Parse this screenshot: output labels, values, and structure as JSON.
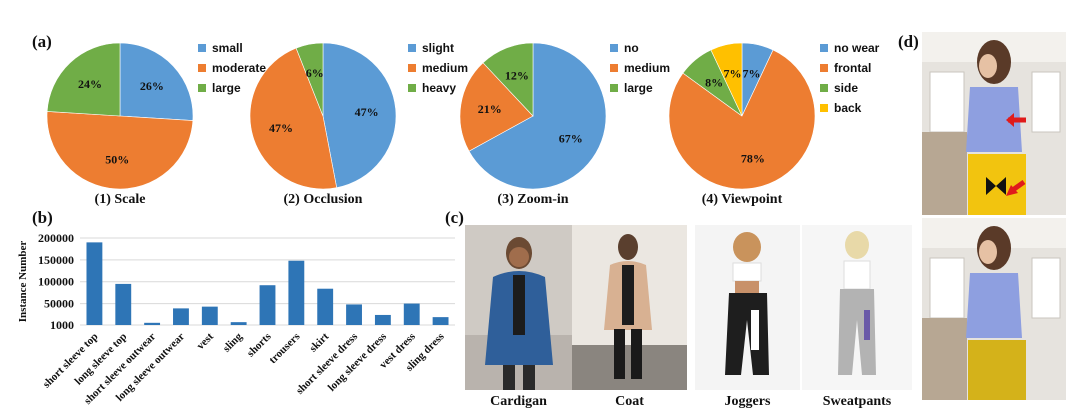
{
  "panels": {
    "a": "(a)",
    "b": "(b)",
    "c": "(c)",
    "d": "(d)"
  },
  "colors": {
    "blue": "#5B9BD5",
    "orange": "#ED7D31",
    "green": "#70AD47",
    "yellow": "#FFC000",
    "bar": "#2E75B6"
  },
  "chart_data": [
    {
      "type": "pie",
      "title": "(1) Scale",
      "slices": [
        {
          "label": "small",
          "value": 26,
          "text": "26%",
          "color": "#5B9BD5"
        },
        {
          "label": "moderate",
          "value": 50,
          "text": "50%",
          "color": "#ED7D31"
        },
        {
          "label": "large",
          "value": 24,
          "text": "24%",
          "color": "#70AD47"
        }
      ],
      "legend_placement": "right"
    },
    {
      "type": "pie",
      "title": "(2) Occlusion",
      "slices": [
        {
          "label": "slight",
          "value": 47,
          "text": "47%",
          "color": "#5B9BD5"
        },
        {
          "label": "medium",
          "value": 47,
          "text": "47%",
          "color": "#ED7D31"
        },
        {
          "label": "heavy",
          "value": 6,
          "text": "6%",
          "color": "#70AD47"
        }
      ],
      "legend_placement": "right"
    },
    {
      "type": "pie",
      "title": "(3) Zoom-in",
      "slices": [
        {
          "label": "no",
          "value": 67,
          "text": "67%",
          "color": "#5B9BD5"
        },
        {
          "label": "medium",
          "value": 21,
          "text": "21%",
          "color": "#ED7D31"
        },
        {
          "label": "large",
          "value": 12,
          "text": "12%",
          "color": "#70AD47"
        }
      ],
      "legend_placement": "right"
    },
    {
      "type": "pie",
      "title": "(4) Viewpoint",
      "slices": [
        {
          "label": "no wear",
          "value": 7,
          "text": "7%",
          "color": "#5B9BD5"
        },
        {
          "label": "frontal",
          "value": 78,
          "text": "78%",
          "color": "#ED7D31"
        },
        {
          "label": "side",
          "value": 8,
          "text": "8%",
          "color": "#70AD47"
        },
        {
          "label": "back",
          "value": 7,
          "text": "7%",
          "color": "#FFC000"
        }
      ],
      "legend_placement": "right"
    },
    {
      "type": "bar",
      "ylabel": "Instance Number",
      "categories": [
        "short sleeve top",
        "long sleeve top",
        "short sleeve outwear",
        "long sleeve outwear",
        "vest",
        "sling",
        "shorts",
        "trousers",
        "skirt",
        "short sleeve dress",
        "long sleeve dress",
        "vest dress",
        "sling dress"
      ],
      "values": [
        190000,
        95000,
        6000,
        39000,
        43000,
        7500,
        92000,
        148000,
        84000,
        48000,
        24000,
        50000,
        19000
      ],
      "yticks": [
        1000,
        50000,
        100000,
        150000,
        200000
      ],
      "yticklabels": [
        "1000",
        "50000",
        "100000",
        "150000",
        "200000"
      ],
      "ylim": [
        1000,
        200000
      ],
      "grid": true
    }
  ],
  "photos": [
    {
      "label": "Cardigan"
    },
    {
      "label": "Coat"
    },
    {
      "label": "Joggers"
    },
    {
      "label": "Sweatpants"
    }
  ]
}
